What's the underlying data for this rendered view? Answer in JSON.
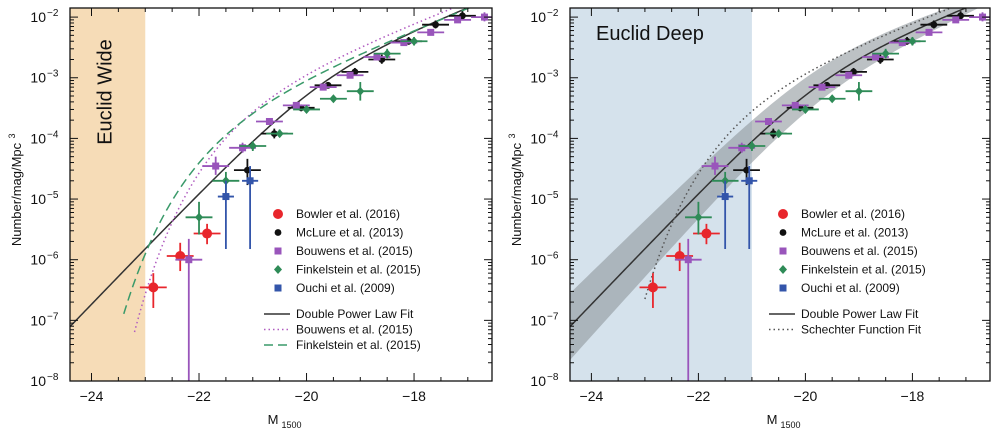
{
  "chart_data": [
    {
      "type": "scatter",
      "shaded_region": {
        "label": "Euclid Wide",
        "x_range": [
          -24.4,
          -23.0
        ],
        "color": "#f6dcb7"
      },
      "xlabel_main": "M",
      "xlabel_sub": "1500",
      "ylabel": "Number/mag/Mpc",
      "ylabel_sup": "3",
      "xlim": [
        -24.4,
        -16.55
      ],
      "ylim_log10": [
        -8,
        -1.85
      ],
      "xticks": [
        {
          "v": -24,
          "label": "−24"
        },
        {
          "v": -22,
          "label": "−22"
        },
        {
          "v": -20,
          "label": "−20"
        },
        {
          "v": -18,
          "label": "−18"
        }
      ],
      "yticks": [
        {
          "e": -8,
          "base": "10",
          "exp": "−8"
        },
        {
          "e": -7,
          "base": "10",
          "exp": "−7"
        },
        {
          "e": -6,
          "base": "10",
          "exp": "−6"
        },
        {
          "e": -5,
          "base": "10",
          "exp": "−5"
        },
        {
          "e": -4,
          "base": "10",
          "exp": "−4"
        },
        {
          "e": -3,
          "base": "10",
          "exp": "−3"
        },
        {
          "e": -2,
          "base": "10",
          "exp": "−2"
        }
      ],
      "series": [
        {
          "name": "Bowler et al. (2016)",
          "color": "#e8262c",
          "marker": "circle",
          "points": [
            {
              "x": -22.85,
              "y": 3.5e-07,
              "xerr": 0.25,
              "ylo": 1.6e-07,
              "yhi": 6e-07
            },
            {
              "x": -22.35,
              "y": 1.15e-06,
              "xerr": 0.25,
              "ylo": 6.5e-07,
              "yhi": 1.9e-06
            },
            {
              "x": -21.85,
              "y": 2.7e-06,
              "xerr": 0.25,
              "ylo": 1.8e-06,
              "yhi": 3.9e-06
            }
          ]
        },
        {
          "name": "McLure et al. (2013)",
          "color": "#111111",
          "marker": "circle",
          "points": [
            {
              "x": -21.1,
              "y": 3e-05,
              "xerr": 0.25,
              "ylo": 1.7e-05,
              "yhi": 4.6e-05
            },
            {
              "x": -20.6,
              "y": 0.00012,
              "xerr": 0.25,
              "ylo": 0.0001,
              "yhi": 0.000145
            },
            {
              "x": -20.1,
              "y": 0.00032,
              "xerr": 0.25,
              "ylo": 0.00028,
              "yhi": 0.00036
            },
            {
              "x": -19.6,
              "y": 0.00075,
              "xerr": 0.25,
              "ylo": 0.00067,
              "yhi": 0.00085
            },
            {
              "x": -19.1,
              "y": 0.00125,
              "xerr": 0.25,
              "ylo": 0.0011,
              "yhi": 0.00145
            },
            {
              "x": -18.6,
              "y": 0.002,
              "xerr": 0.25,
              "ylo": 0.0017,
              "yhi": 0.0024
            },
            {
              "x": -18.1,
              "y": 0.004,
              "xerr": 0.25,
              "ylo": 0.0035,
              "yhi": 0.0047
            },
            {
              "x": -17.6,
              "y": 0.0075,
              "xerr": 0.25,
              "ylo": 0.0065,
              "yhi": 0.0088
            },
            {
              "x": -17.1,
              "y": 0.0105,
              "xerr": 0.25,
              "ylo": 0.009,
              "yhi": 0.0125
            }
          ]
        },
        {
          "name": "Bouwens et al. (2015)",
          "color": "#9955bb",
          "marker": "square",
          "points": [
            {
              "x": -22.19,
              "y": 1e-06,
              "xerr": 0.25,
              "ylo": 1e-08,
              "yhi": 2.2e-06
            },
            {
              "x": -21.69,
              "y": 3.5e-05,
              "xerr": 0.25,
              "ylo": 2.5e-05,
              "yhi": 5e-05
            },
            {
              "x": -21.19,
              "y": 7e-05,
              "xerr": 0.25,
              "ylo": 5.8e-05,
              "yhi": 8.5e-05
            },
            {
              "x": -20.69,
              "y": 0.00019,
              "xerr": 0.25,
              "ylo": 0.00017,
              "yhi": 0.00021
            },
            {
              "x": -20.19,
              "y": 0.00035,
              "xerr": 0.25,
              "ylo": 0.00032,
              "yhi": 0.00039
            },
            {
              "x": -19.69,
              "y": 0.0007,
              "xerr": 0.25,
              "ylo": 0.00064,
              "yhi": 0.00077
            },
            {
              "x": -19.19,
              "y": 0.0011,
              "xerr": 0.25,
              "ylo": 0.001,
              "yhi": 0.00125
            },
            {
              "x": -18.69,
              "y": 0.0022,
              "xerr": 0.25,
              "ylo": 0.002,
              "yhi": 0.0025
            },
            {
              "x": -18.19,
              "y": 0.0038,
              "xerr": 0.25,
              "ylo": 0.0034,
              "yhi": 0.0043
            },
            {
              "x": -17.69,
              "y": 0.0056,
              "xerr": 0.25,
              "ylo": 0.005,
              "yhi": 0.0063
            },
            {
              "x": -17.19,
              "y": 0.009,
              "xerr": 0.25,
              "ylo": 0.008,
              "yhi": 0.01
            },
            {
              "x": -16.69,
              "y": 0.01,
              "xerr": 0.25,
              "ylo": 0.0085,
              "yhi": 0.012
            }
          ]
        },
        {
          "name": "Finkelstein et al. (2015)",
          "color": "#2e8b57",
          "marker": "diamond",
          "points": [
            {
              "x": -22.0,
              "y": 5e-06,
              "xerr": 0.25,
              "ylo": 2.6e-06,
              "yhi": 9e-06
            },
            {
              "x": -21.5,
              "y": 2e-05,
              "xerr": 0.25,
              "ylo": 1.4e-05,
              "yhi": 2.8e-05
            },
            {
              "x": -21.0,
              "y": 7.5e-05,
              "xerr": 0.25,
              "ylo": 6.2e-05,
              "yhi": 9e-05
            },
            {
              "x": -20.5,
              "y": 0.00012,
              "xerr": 0.25,
              "ylo": 0.000105,
              "yhi": 0.00014
            },
            {
              "x": -20.0,
              "y": 0.0003,
              "xerr": 0.25,
              "ylo": 0.00027,
              "yhi": 0.00034
            },
            {
              "x": -19.5,
              "y": 0.00045,
              "xerr": 0.25,
              "ylo": 0.0004,
              "yhi": 0.00051
            },
            {
              "x": -19.0,
              "y": 0.0006,
              "xerr": 0.25,
              "ylo": 0.00042,
              "yhi": 0.00085
            },
            {
              "x": -18.5,
              "y": 0.0025,
              "xerr": 0.25,
              "ylo": 0.0021,
              "yhi": 0.003
            },
            {
              "x": -18.0,
              "y": 0.004,
              "xerr": 0.25,
              "ylo": 0.0034,
              "yhi": 0.0047
            }
          ]
        },
        {
          "name": "Ouchi et al. (2009)",
          "color": "#3355aa",
          "marker": "square",
          "points": [
            {
              "x": -21.5,
              "y": 1.1e-05,
              "xerr": 0.15,
              "ylo": 1.5e-06,
              "yhi": 2e-05
            },
            {
              "x": -21.05,
              "y": 2e-05,
              "xerr": 0.15,
              "ylo": 1.5e-06,
              "yhi": 3.5e-05
            }
          ]
        }
      ],
      "fits": [
        {
          "name": "Double Power Law Fit",
          "color": "#333333",
          "style": "solid",
          "kind": "dpl",
          "params": {
            "phi": 0.0015,
            "Mstar": -19.75,
            "alpha": -1.9,
            "beta": -3.3
          },
          "x_range": [
            -24.4,
            -16.55
          ]
        },
        {
          "name": "Bouwens et al. (2015)",
          "color": "#b05cc0",
          "style": "dotted",
          "kind": "schechter",
          "params": {
            "phi": 0.0008,
            "Mstar": -21.0,
            "alpha": -1.87
          },
          "x_range": [
            -23.2,
            -16.55
          ]
        },
        {
          "name": "Finkelstein et al. (2015)",
          "color": "#3a9a6a",
          "style": "dashed",
          "kind": "schechter",
          "params": {
            "phi": 0.0004,
            "Mstar": -21.4,
            "alpha": -1.9
          },
          "x_range": [
            -23.4,
            -16.55
          ]
        }
      ],
      "band": null,
      "legend": {
        "points": [
          "Bowler et al. (2016)",
          "McLure et al. (2013)",
          "Bouwens et al. (2015)",
          "Finkelstein et al. (2015)",
          "Ouchi et al. (2009)"
        ],
        "lines": [
          "Double Power Law Fit",
          "Bouwens et al. (2015)",
          "Finkelstein et al. (2015)"
        ],
        "placement": "lower-right"
      }
    },
    {
      "type": "scatter",
      "shaded_region": {
        "label": "Euclid Deep",
        "x_range": [
          -24.4,
          -21.0
        ],
        "color": "#d5e2ec"
      },
      "xlabel_main": "M",
      "xlabel_sub": "1500",
      "ylabel": "Number/mag/Mpc",
      "ylabel_sup": "3",
      "xlim": [
        -24.4,
        -16.55
      ],
      "ylim_log10": [
        -8,
        -1.85
      ],
      "xticks": [
        {
          "v": -24,
          "label": "−24"
        },
        {
          "v": -22,
          "label": "−22"
        },
        {
          "v": -20,
          "label": "−20"
        },
        {
          "v": -18,
          "label": "−18"
        }
      ],
      "yticks": [
        {
          "e": -8,
          "base": "10",
          "exp": "−8"
        },
        {
          "e": -7,
          "base": "10",
          "exp": "−7"
        },
        {
          "e": -6,
          "base": "10",
          "exp": "−6"
        },
        {
          "e": -5,
          "base": "10",
          "exp": "−5"
        },
        {
          "e": -4,
          "base": "10",
          "exp": "−4"
        },
        {
          "e": -3,
          "base": "10",
          "exp": "−3"
        },
        {
          "e": -2,
          "base": "10",
          "exp": "−2"
        }
      ],
      "series": [
        {
          "name": "Bowler et al. (2016)",
          "color": "#e8262c",
          "marker": "circle",
          "points": [
            {
              "x": -22.85,
              "y": 3.5e-07,
              "xerr": 0.25,
              "ylo": 1.6e-07,
              "yhi": 6e-07
            },
            {
              "x": -22.35,
              "y": 1.15e-06,
              "xerr": 0.25,
              "ylo": 6.5e-07,
              "yhi": 1.9e-06
            },
            {
              "x": -21.85,
              "y": 2.7e-06,
              "xerr": 0.25,
              "ylo": 1.8e-06,
              "yhi": 3.9e-06
            }
          ]
        },
        {
          "name": "McLure et al. (2013)",
          "color": "#111111",
          "marker": "circle",
          "points": [
            {
              "x": -21.1,
              "y": 3e-05,
              "xerr": 0.25,
              "ylo": 1.7e-05,
              "yhi": 4.6e-05
            },
            {
              "x": -20.6,
              "y": 0.00012,
              "xerr": 0.25,
              "ylo": 0.0001,
              "yhi": 0.000145
            },
            {
              "x": -20.1,
              "y": 0.00032,
              "xerr": 0.25,
              "ylo": 0.00028,
              "yhi": 0.00036
            },
            {
              "x": -19.6,
              "y": 0.00075,
              "xerr": 0.25,
              "ylo": 0.00067,
              "yhi": 0.00085
            },
            {
              "x": -19.1,
              "y": 0.00125,
              "xerr": 0.25,
              "ylo": 0.0011,
              "yhi": 0.00145
            },
            {
              "x": -18.6,
              "y": 0.002,
              "xerr": 0.25,
              "ylo": 0.0017,
              "yhi": 0.0024
            },
            {
              "x": -18.1,
              "y": 0.004,
              "xerr": 0.25,
              "ylo": 0.0035,
              "yhi": 0.0047
            },
            {
              "x": -17.6,
              "y": 0.0075,
              "xerr": 0.25,
              "ylo": 0.0065,
              "yhi": 0.0088
            },
            {
              "x": -17.1,
              "y": 0.0105,
              "xerr": 0.25,
              "ylo": 0.009,
              "yhi": 0.0125
            }
          ]
        },
        {
          "name": "Bouwens et al. (2015)",
          "color": "#9955bb",
          "marker": "square",
          "points": [
            {
              "x": -22.19,
              "y": 1e-06,
              "xerr": 0.25,
              "ylo": 1e-08,
              "yhi": 2.2e-06
            },
            {
              "x": -21.69,
              "y": 3.5e-05,
              "xerr": 0.25,
              "ylo": 2.5e-05,
              "yhi": 5e-05
            },
            {
              "x": -21.19,
              "y": 7e-05,
              "xerr": 0.25,
              "ylo": 5.8e-05,
              "yhi": 8.5e-05
            },
            {
              "x": -20.69,
              "y": 0.00019,
              "xerr": 0.25,
              "ylo": 0.00017,
              "yhi": 0.00021
            },
            {
              "x": -20.19,
              "y": 0.00035,
              "xerr": 0.25,
              "ylo": 0.00032,
              "yhi": 0.00039
            },
            {
              "x": -19.69,
              "y": 0.0007,
              "xerr": 0.25,
              "ylo": 0.00064,
              "yhi": 0.00077
            },
            {
              "x": -19.19,
              "y": 0.0011,
              "xerr": 0.25,
              "ylo": 0.001,
              "yhi": 0.00125
            },
            {
              "x": -18.69,
              "y": 0.0022,
              "xerr": 0.25,
              "ylo": 0.002,
              "yhi": 0.0025
            },
            {
              "x": -18.19,
              "y": 0.0038,
              "xerr": 0.25,
              "ylo": 0.0034,
              "yhi": 0.0043
            },
            {
              "x": -17.69,
              "y": 0.0056,
              "xerr": 0.25,
              "ylo": 0.005,
              "yhi": 0.0063
            },
            {
              "x": -17.19,
              "y": 0.009,
              "xerr": 0.25,
              "ylo": 0.008,
              "yhi": 0.01
            },
            {
              "x": -16.69,
              "y": 0.01,
              "xerr": 0.25,
              "ylo": 0.0085,
              "yhi": 0.012
            }
          ]
        },
        {
          "name": "Finkelstein et al. (2015)",
          "color": "#2e8b57",
          "marker": "diamond",
          "points": [
            {
              "x": -22.0,
              "y": 5e-06,
              "xerr": 0.25,
              "ylo": 2.6e-06,
              "yhi": 9e-06
            },
            {
              "x": -21.5,
              "y": 2e-05,
              "xerr": 0.25,
              "ylo": 1.4e-05,
              "yhi": 2.8e-05
            },
            {
              "x": -21.0,
              "y": 7.5e-05,
              "xerr": 0.25,
              "ylo": 6.2e-05,
              "yhi": 9e-05
            },
            {
              "x": -20.5,
              "y": 0.00012,
              "xerr": 0.25,
              "ylo": 0.000105,
              "yhi": 0.00014
            },
            {
              "x": -20.0,
              "y": 0.0003,
              "xerr": 0.25,
              "ylo": 0.00027,
              "yhi": 0.00034
            },
            {
              "x": -19.5,
              "y": 0.00045,
              "xerr": 0.25,
              "ylo": 0.0004,
              "yhi": 0.00051
            },
            {
              "x": -19.0,
              "y": 0.0006,
              "xerr": 0.25,
              "ylo": 0.00042,
              "yhi": 0.00085
            },
            {
              "x": -18.5,
              "y": 0.0025,
              "xerr": 0.25,
              "ylo": 0.0021,
              "yhi": 0.003
            },
            {
              "x": -18.0,
              "y": 0.004,
              "xerr": 0.25,
              "ylo": 0.0034,
              "yhi": 0.0047
            }
          ]
        },
        {
          "name": "Ouchi et al. (2009)",
          "color": "#3355aa",
          "marker": "square",
          "points": [
            {
              "x": -21.5,
              "y": 1.1e-05,
              "xerr": 0.15,
              "ylo": 1.5e-06,
              "yhi": 2e-05
            },
            {
              "x": -21.05,
              "y": 2e-05,
              "xerr": 0.15,
              "ylo": 1.5e-06,
              "yhi": 3.5e-05
            }
          ]
        }
      ],
      "fits": [
        {
          "name": "Double Power Law Fit",
          "color": "#333333",
          "style": "solid",
          "kind": "dpl",
          "params": {
            "phi": 0.0015,
            "Mstar": -19.75,
            "alpha": -1.9,
            "beta": -3.3
          },
          "x_range": [
            -24.4,
            -16.55
          ]
        },
        {
          "name": "Schechter Function Fit",
          "color": "#555555",
          "style": "dotted",
          "kind": "schechter",
          "params": {
            "phi": 0.0009,
            "Mstar": -20.95,
            "alpha": -1.85
          },
          "x_range": [
            -23.0,
            -16.55
          ]
        }
      ],
      "band": {
        "around": "Double Power Law Fit",
        "color": "#8f979c",
        "opacity": 0.6,
        "dex_at_bright": 0.55,
        "dex_at_faint": 0.08
      },
      "legend": {
        "points": [
          "Bowler et al. (2016)",
          "McLure et al. (2013)",
          "Bouwens et al. (2015)",
          "Finkelstein et al. (2015)",
          "Ouchi et al. (2009)"
        ],
        "lines": [
          "Double Power Law Fit",
          "Schechter Function Fit"
        ],
        "placement": "lower-right"
      }
    }
  ]
}
